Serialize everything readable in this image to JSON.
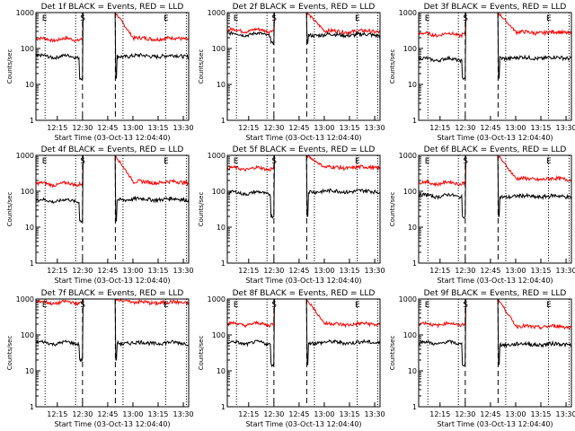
{
  "chart_data": [
    {
      "type": "line",
      "title": "Det 1f BLACK = Events, RED = LLD",
      "xlabel": "Start Time (03-Oct-13 12:04:40)",
      "ylabel": "Counts/sec",
      "yscale": "log",
      "ylim": [
        1,
        1000
      ],
      "yticks": [
        "1",
        "10",
        "100",
        "1000"
      ],
      "xticks": [
        "12:15",
        "12:30",
        "12:45",
        "13:00",
        "13:15",
        "13:30"
      ],
      "markers": [
        "E",
        "S",
        "E"
      ],
      "series": [
        {
          "color": "#ff0000",
          "pre": 180,
          "peak": 1000,
          "post": 190
        },
        {
          "color": "#000000",
          "pre": 60,
          "dip": 15,
          "post": 62
        }
      ]
    },
    {
      "type": "line",
      "title": "Det 2f BLACK = Events, RED = LLD",
      "xlabel": "Start Time (03-Oct-13 12:04:40)",
      "ylabel": "Counts/sec",
      "yscale": "log",
      "ylim": [
        1,
        1000
      ],
      "yticks": [
        "1",
        "10",
        "100",
        "1000"
      ],
      "xticks": [
        "12:15",
        "12:30",
        "12:45",
        "13:00",
        "13:15",
        "13:30"
      ],
      "markers": [
        "E",
        "S",
        "E"
      ],
      "series": [
        {
          "color": "#ff0000",
          "pre": 320,
          "peak": 1000,
          "post": 300
        },
        {
          "color": "#000000",
          "pre": 250,
          "dip": 140,
          "post": 240
        }
      ]
    },
    {
      "type": "line",
      "title": "Det 3f BLACK = Events, RED = LLD",
      "xlabel": "Start Time (03-Oct-13 12:04:40)",
      "ylabel": "Counts/sec",
      "yscale": "log",
      "ylim": [
        1,
        1000
      ],
      "yticks": [
        "1",
        "10",
        "100",
        "1000"
      ],
      "xticks": [
        "12:15",
        "12:30",
        "12:45",
        "13:00",
        "13:15",
        "13:30"
      ],
      "markers": [
        "E",
        "S",
        "E"
      ],
      "series": [
        {
          "color": "#ff0000",
          "pre": 250,
          "peak": 1000,
          "post": 280
        },
        {
          "color": "#000000",
          "pre": 50,
          "dip": 15,
          "post": 55
        }
      ]
    },
    {
      "type": "line",
      "title": "Det 4f BLACK = Events, RED = LLD",
      "xlabel": "Start Time (03-Oct-13 12:04:40)",
      "ylabel": "Counts/sec",
      "yscale": "log",
      "ylim": [
        1,
        1000
      ],
      "yticks": [
        "1",
        "10",
        "100",
        "1000"
      ],
      "xticks": [
        "12:15",
        "12:30",
        "12:45",
        "13:00",
        "13:15",
        "13:30"
      ],
      "markers": [
        "E",
        "S",
        "E"
      ],
      "series": [
        {
          "color": "#ff0000",
          "pre": 160,
          "peak": 1000,
          "post": 180
        },
        {
          "color": "#000000",
          "pre": 55,
          "dip": 15,
          "post": 60
        }
      ]
    },
    {
      "type": "line",
      "title": "Det 5f BLACK = Events, RED = LLD",
      "xlabel": "Start Time (03-Oct-13 12:04:40)",
      "ylabel": "Counts/sec",
      "yscale": "log",
      "ylim": [
        1,
        1000
      ],
      "yticks": [
        "1",
        "10",
        "100",
        "1000"
      ],
      "xticks": [
        "12:15",
        "12:30",
        "12:45",
        "13:00",
        "13:15",
        "13:30"
      ],
      "markers": [
        "E",
        "S",
        "E"
      ],
      "series": [
        {
          "color": "#ff0000",
          "pre": 430,
          "peak": 1000,
          "post": 460
        },
        {
          "color": "#000000",
          "pre": 90,
          "dip": 20,
          "post": 100
        }
      ]
    },
    {
      "type": "line",
      "title": "Det 6f BLACK = Events, RED = LLD",
      "xlabel": "Start Time (03-Oct-13 12:04:40)",
      "ylabel": "Counts/sec",
      "yscale": "log",
      "ylim": [
        1,
        1000
      ],
      "yticks": [
        "1",
        "10",
        "100",
        "1000"
      ],
      "xticks": [
        "12:15",
        "12:30",
        "12:45",
        "13:00",
        "13:15",
        "13:30"
      ],
      "markers": [
        "E",
        "S",
        "E"
      ],
      "series": [
        {
          "color": "#ff0000",
          "pre": 170,
          "peak": 1000,
          "post": 220
        },
        {
          "color": "#000000",
          "pre": 75,
          "dip": 20,
          "post": 72
        }
      ]
    },
    {
      "type": "line",
      "title": "Det 7f BLACK = Events, RED = LLD",
      "xlabel": "Start Time (03-Oct-13 12:04:40)",
      "ylabel": "Counts/sec",
      "yscale": "log",
      "ylim": [
        1,
        1000
      ],
      "yticks": [
        "1",
        "10",
        "100",
        "1000"
      ],
      "xticks": [
        "12:15",
        "12:30",
        "12:45",
        "13:00",
        "13:15",
        "13:30"
      ],
      "markers": [
        "E",
        "S",
        "E"
      ],
      "series": [
        {
          "color": "#ff0000",
          "pre": 800,
          "peak": 1000,
          "post": 800
        },
        {
          "color": "#000000",
          "pre": 60,
          "dip": 20,
          "post": 60
        }
      ]
    },
    {
      "type": "line",
      "title": "Det 8f BLACK = Events, RED = LLD",
      "xlabel": "Start Time (03-Oct-13 12:04:40)",
      "ylabel": "Counts/sec",
      "yscale": "log",
      "ylim": [
        1,
        1000
      ],
      "yticks": [
        "1",
        "10",
        "100",
        "1000"
      ],
      "xticks": [
        "12:15",
        "12:30",
        "12:45",
        "13:00",
        "13:15",
        "13:30"
      ],
      "markers": [
        "E",
        "S",
        "E"
      ],
      "series": [
        {
          "color": "#ff0000",
          "pre": 200,
          "peak": 1000,
          "post": 200
        },
        {
          "color": "#000000",
          "pre": 60,
          "dip": 15,
          "post": 62
        }
      ]
    },
    {
      "type": "line",
      "title": "Det 9f BLACK = Events, RED = LLD",
      "xlabel": "Start Time (03-Oct-13 12:04:40)",
      "ylabel": "Counts/sec",
      "yscale": "log",
      "ylim": [
        1,
        1000
      ],
      "yticks": [
        "1",
        "10",
        "100",
        "1000"
      ],
      "xticks": [
        "12:15",
        "12:30",
        "12:45",
        "13:00",
        "13:15",
        "13:30"
      ],
      "markers": [
        "E",
        "S",
        "E"
      ],
      "series": [
        {
          "color": "#ff0000",
          "pre": 200,
          "peak": 1000,
          "post": 170
        },
        {
          "color": "#000000",
          "pre": 60,
          "dip": 15,
          "post": 55
        }
      ]
    }
  ]
}
